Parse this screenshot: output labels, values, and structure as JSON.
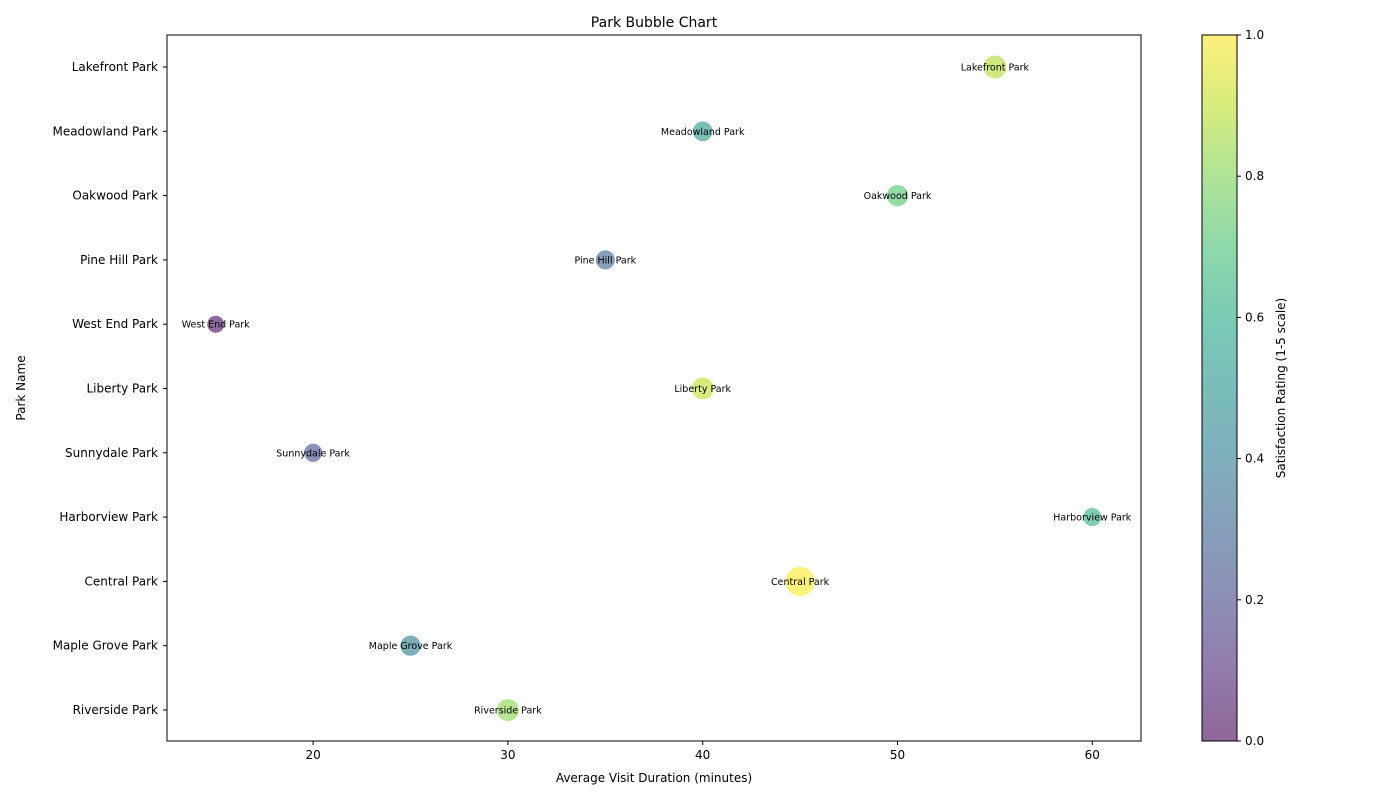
{
  "chart_data": {
    "type": "scatter",
    "title": "Park Bubble Chart",
    "xlabel": "Average Visit Duration (minutes)",
    "ylabel": "Park Name",
    "xlim": [
      12.5,
      62.5
    ],
    "x_ticks": [
      "20",
      "30",
      "40",
      "50",
      "60"
    ],
    "x_tick_values": [
      20,
      30,
      40,
      50,
      60
    ],
    "categories": [
      "Riverside Park",
      "Maple Grove Park",
      "Central Park",
      "Harborview Park",
      "Sunnydale Park",
      "Liberty Park",
      "West End Park",
      "Pine Hill Park",
      "Oakwood Park",
      "Meadowland Park",
      "Lakefront Park"
    ],
    "points": [
      {
        "park": "Riverside Park",
        "duration": 30,
        "color_value": 0.82,
        "size": 0.55
      },
      {
        "park": "Maple Grove Park",
        "duration": 25,
        "color_value": 0.4,
        "size": 0.45
      },
      {
        "park": "Central Park",
        "duration": 45,
        "color_value": 1.0,
        "size": 1.0
      },
      {
        "park": "Harborview Park",
        "duration": 60,
        "color_value": 0.62,
        "size": 0.32
      },
      {
        "park": "Sunnydale Park",
        "duration": 20,
        "color_value": 0.22,
        "size": 0.32
      },
      {
        "park": "Liberty Park",
        "duration": 40,
        "color_value": 0.9,
        "size": 0.55
      },
      {
        "park": "West End Park",
        "duration": 15,
        "color_value": 0.02,
        "size": 0.25
      },
      {
        "park": "Pine Hill Park",
        "duration": 35,
        "color_value": 0.3,
        "size": 0.38
      },
      {
        "park": "Oakwood Park",
        "duration": 50,
        "color_value": 0.72,
        "size": 0.52
      },
      {
        "park": "Meadowland Park",
        "duration": 40,
        "color_value": 0.52,
        "size": 0.42
      },
      {
        "park": "Lakefront Park",
        "duration": 55,
        "color_value": 0.88,
        "size": 0.62
      }
    ],
    "colorbar": {
      "label": "Satisfaction Rating (1-5 scale)",
      "range": [
        0,
        1
      ],
      "ticks": [
        "0.0",
        "0.2",
        "0.4",
        "0.6",
        "0.8",
        "1.0"
      ],
      "tick_values": [
        0,
        0.2,
        0.4,
        0.6,
        0.8,
        1.0
      ],
      "colormap": "viridis"
    },
    "grid": false,
    "marker_alpha": 0.6
  }
}
